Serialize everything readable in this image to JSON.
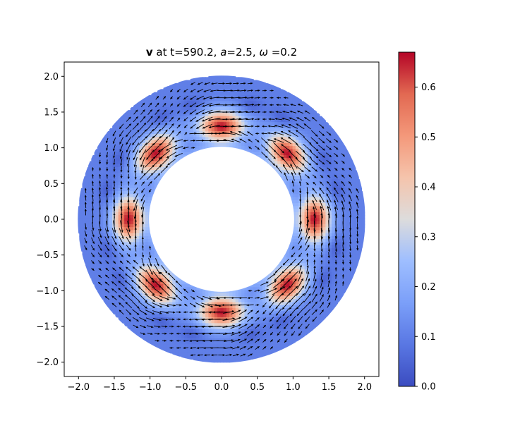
{
  "chart_data": {
    "type": "heatmap",
    "title": {
      "bold": "v",
      "mid1": " at t=590.2, ",
      "a_sym": "a",
      "a_val": "=2.5, ",
      "w_sym": "ω",
      "w_val": " =0.2"
    },
    "xlabel": "",
    "ylabel": "",
    "xlim": [
      -2.2,
      2.2
    ],
    "ylim": [
      -2.2,
      2.2
    ],
    "x_ticks": [
      -2.0,
      -1.5,
      -1.0,
      -0.5,
      0.0,
      0.5,
      1.0,
      1.5,
      2.0
    ],
    "x_tick_labels": [
      "−2.0",
      "−1.5",
      "−1.0",
      "−0.5",
      "0.0",
      "0.5",
      "1.0",
      "1.5",
      "2.0"
    ],
    "y_ticks": [
      2.0,
      1.5,
      1.0,
      0.5,
      0.0,
      -0.5,
      -1.0,
      -1.5,
      -2.0
    ],
    "y_tick_labels": [
      "2.0",
      "1.5",
      "1.0",
      "0.5",
      "0.0",
      "−0.5",
      "−1.0",
      "−1.5",
      "−2.0"
    ],
    "domain": {
      "shape": "annulus",
      "inner_radius": 1.0,
      "outer_radius": 2.0
    },
    "field": {
      "lobe_count": 8,
      "lobe_angles_deg": [
        0,
        45,
        90,
        135,
        180,
        225,
        270,
        315
      ],
      "lobe_center_radius": 1.3,
      "peak_value": 0.66,
      "background_value": 0.1
    },
    "colorbar": {
      "range": [
        0.0,
        0.67
      ],
      "ticks": [
        0.0,
        0.1,
        0.2,
        0.3,
        0.4,
        0.5,
        0.6
      ],
      "tick_labels": [
        "0.0",
        "0.1",
        "0.2",
        "0.3",
        "0.4",
        "0.5",
        "0.6"
      ],
      "colormap": "coolwarm"
    },
    "grid": false,
    "legend": "none",
    "overlay": "quiver"
  }
}
